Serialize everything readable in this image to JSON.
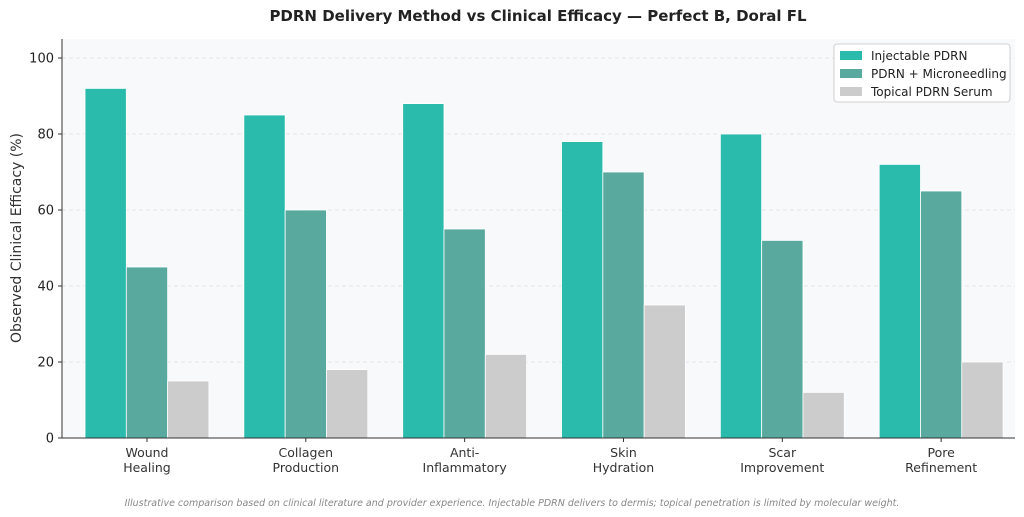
{
  "chart_data": {
    "type": "bar",
    "title": "PDRN Delivery Method vs Clinical Efficacy — Perfect B, Doral FL",
    "xlabel": "",
    "ylabel": "Observed Clinical Efficacy (%)",
    "ylim": [
      0,
      105
    ],
    "yticks": [
      0,
      20,
      40,
      60,
      80,
      100
    ],
    "grid": true,
    "legend_position": "top-right",
    "categories": [
      [
        "Wound",
        "Healing"
      ],
      [
        "Collagen",
        "Production"
      ],
      [
        "Anti-",
        "Inflammatory"
      ],
      [
        "Skin",
        "Hydration"
      ],
      [
        "Scar",
        "Improvement"
      ],
      [
        "Pore",
        "Refinement"
      ]
    ],
    "series": [
      {
        "name": "Injectable PDRN",
        "color": "#2bbbad",
        "values": [
          92,
          85,
          88,
          78,
          80,
          72
        ]
      },
      {
        "name": "PDRN + Microneedling",
        "color": "#5aa99f",
        "values": [
          45,
          60,
          55,
          70,
          52,
          65
        ]
      },
      {
        "name": "Topical PDRN Serum",
        "color": "#cccccc",
        "values": [
          15,
          18,
          22,
          35,
          12,
          20
        ]
      }
    ],
    "footnote": "Illustrative comparison based on clinical literature and provider experience. Injectable PDRN delivers to dermis; topical penetration is limited by molecular weight."
  }
}
